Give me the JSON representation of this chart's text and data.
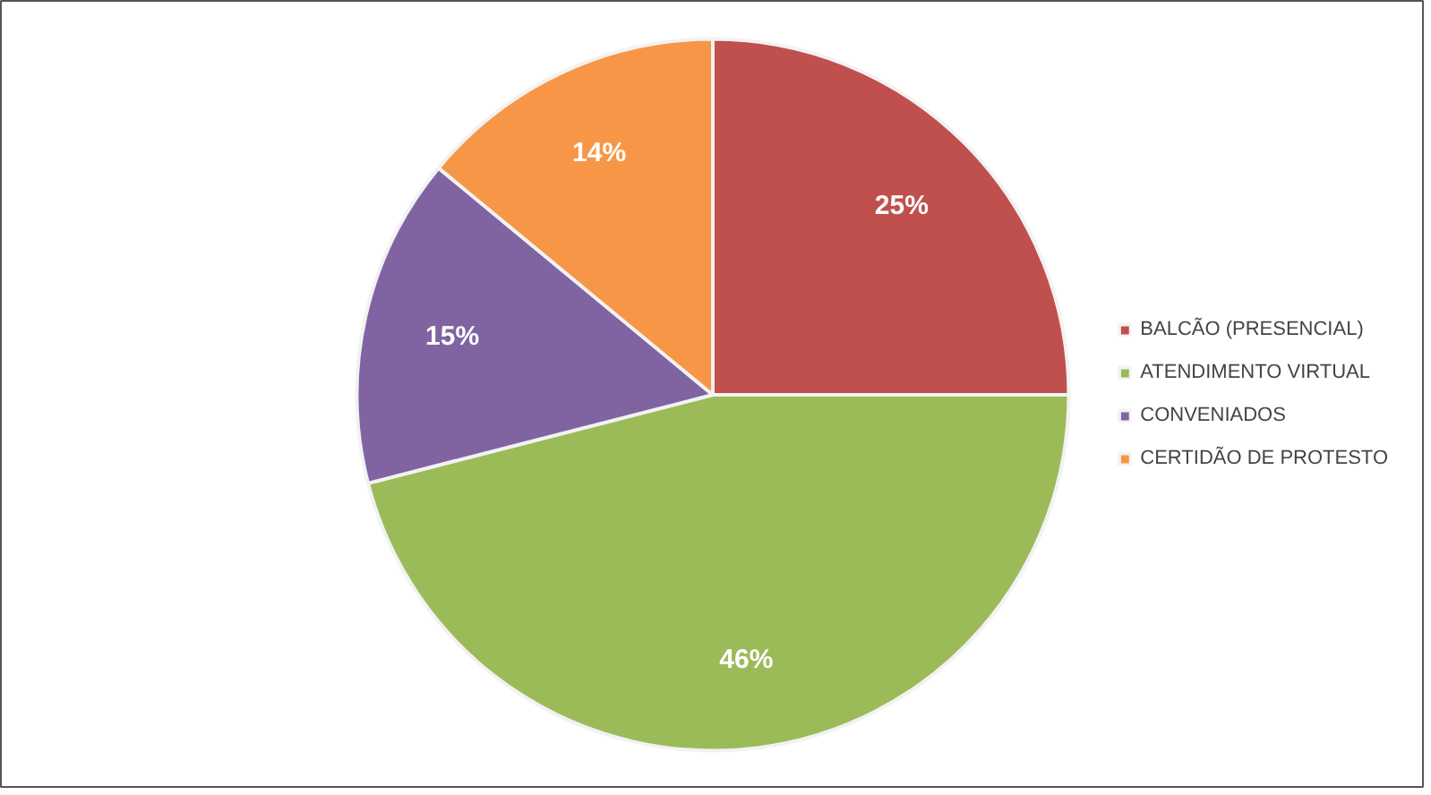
{
  "chart_data": {
    "type": "pie",
    "categories": [
      "BALCÃO (PRESENCIAL)",
      "ATENDIMENTO VIRTUAL",
      "CONVENIADOS",
      "CERTIDÃO DE PROTESTO"
    ],
    "values": [
      25,
      46,
      15,
      14
    ],
    "colors": [
      "#c0504d",
      "#9bbb59",
      "#8064a2",
      "#f79646"
    ],
    "value_labels": [
      "25%",
      "46%",
      "15%",
      "14%"
    ],
    "legend": "right"
  }
}
